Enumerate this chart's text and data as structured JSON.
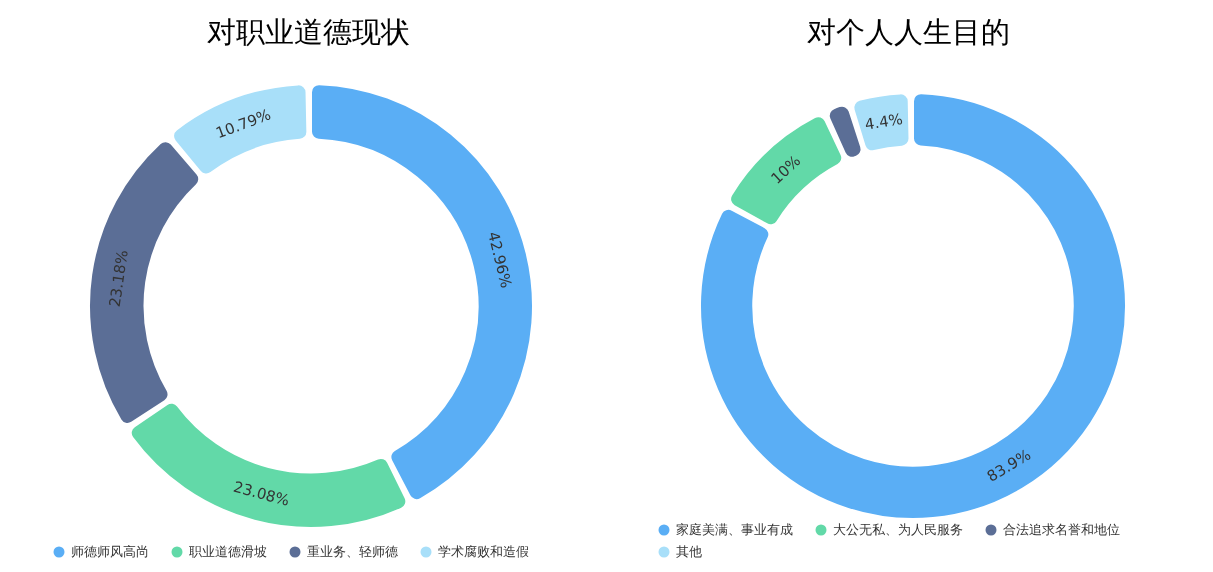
{
  "chart_data": [
    {
      "type": "donut",
      "title": "对职业道德现状",
      "categories": [
        "师德师风高尚",
        "职业道德滑坡",
        "重业务、轻师德",
        "学术腐败和造假"
      ],
      "values": [
        42.96,
        23.08,
        23.18,
        10.79
      ],
      "colors": [
        "#5aaef5",
        "#62d9a8",
        "#5b6e96",
        "#a8dff9"
      ],
      "value_labels": [
        "42.96%",
        "23.08%",
        "23.18%",
        "10.79%"
      ],
      "legend": "bottom"
    },
    {
      "type": "donut",
      "title": "对个人人生目的",
      "categories": [
        "家庭美满、事业有成",
        "大公无私、为人民服务",
        "合法追求名誉和地位",
        "其他"
      ],
      "values": [
        83.9,
        10,
        1.7,
        4.4
      ],
      "colors": [
        "#5aaef5",
        "#62d9a8",
        "#5b6e96",
        "#a8dff9"
      ],
      "value_labels": [
        "83.9%",
        "10%",
        null,
        "4.4%"
      ],
      "legend": "bottom"
    }
  ]
}
